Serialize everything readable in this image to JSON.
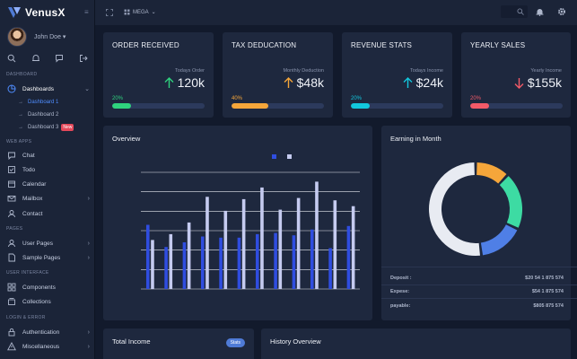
{
  "brand": {
    "name": "VenusX"
  },
  "user": {
    "name": "John Doe",
    "caret": "▾"
  },
  "sidebar": {
    "sections": {
      "dashboard": "DASHBOARD",
      "web_apps": "WEB APPS",
      "pages": "PAGES",
      "user_interface": "USER INTERFACE",
      "login_error": "LOGIN & ERROR"
    },
    "dashboards": {
      "label": "Dashboards",
      "chevron": "⌄"
    },
    "sub_items": [
      {
        "label": "Dashboard 1"
      },
      {
        "label": "Dashboard 2"
      },
      {
        "label": "Dashboard 3",
        "badge": "New"
      }
    ],
    "web_apps": [
      {
        "label": "Chat"
      },
      {
        "label": "Todo"
      },
      {
        "label": "Calendar"
      },
      {
        "label": "Mailbox",
        "chevron": "›"
      },
      {
        "label": "Contact"
      }
    ],
    "pages": [
      {
        "label": "User Pages",
        "chevron": "›"
      },
      {
        "label": "Sample Pages",
        "chevron": "›"
      }
    ],
    "ui": [
      {
        "label": "Components"
      },
      {
        "label": "Collections"
      }
    ],
    "login": [
      {
        "label": "Authentication",
        "chevron": "›"
      },
      {
        "label": "Miscellaneous",
        "chevron": "›"
      }
    ]
  },
  "topbar": {
    "mega_label": "MEGA",
    "mega_caret": "⌄"
  },
  "stats": [
    {
      "title": "ORDER RECEIVED",
      "sub": "Todays Order",
      "value": "120k",
      "percent": "20%",
      "progress": 0.2,
      "direction": "up",
      "color": "#2fd27e",
      "arrow_color": "#2fd27e"
    },
    {
      "title": "TAX DEDUCATION",
      "sub": "Monthly Deduction",
      "value": "$48k",
      "percent": "40%",
      "progress": 0.4,
      "direction": "up",
      "color": "#f5a63a",
      "arrow_color": "#f5a63a"
    },
    {
      "title": "REVENUE STATS",
      "sub": "Todays Income",
      "value": "$24k",
      "percent": "20%",
      "progress": 0.2,
      "direction": "up",
      "color": "#12c7dd",
      "arrow_color": "#12c7dd"
    },
    {
      "title": "YEARLY SALES",
      "sub": "Yearly Income",
      "value": "$155k",
      "percent": "20%",
      "progress": 0.2,
      "direction": "down",
      "color": "#f25a68",
      "arrow_color": "#f25a68"
    }
  ],
  "overview": {
    "title": "Overview"
  },
  "earning": {
    "title": "Earning in Month",
    "rows": [
      {
        "label": "Deposit :",
        "value": "$20 54 1 875 574"
      },
      {
        "label": "Expese:",
        "value": "$54 1 875 574"
      },
      {
        "label": "payable:",
        "value": "$805 875 574"
      }
    ]
  },
  "total_income": {
    "title": "Total Income",
    "button": "Stats"
  },
  "history": {
    "title": "History Overview"
  },
  "chart_data": [
    {
      "type": "bar",
      "title": "",
      "categories": [
        "",
        "",
        "",
        "",
        "",
        "",
        "",
        "",
        "",
        "",
        "",
        ""
      ],
      "ylim": [
        0,
        100
      ],
      "grid": true,
      "series": [
        {
          "name": "",
          "color": "#2f4de0",
          "values": [
            55,
            36,
            40,
            45,
            44,
            44,
            47,
            48,
            46,
            51,
            35,
            54
          ]
        },
        {
          "name": "",
          "color": "#c5cbf0",
          "values": [
            42,
            47,
            57,
            79,
            67,
            77,
            87,
            68,
            78,
            92,
            76,
            71
          ]
        }
      ]
    },
    {
      "type": "pie",
      "title": "",
      "donut": true,
      "series": [
        {
          "name": "",
          "color": "#f5a63a",
          "value": 12
        },
        {
          "name": "",
          "color": "#3ddba3",
          "value": 20
        },
        {
          "name": "",
          "color": "#4f7fe6",
          "value": 16
        },
        {
          "name": "",
          "color": "#e8ebf2",
          "value": 52
        }
      ]
    }
  ],
  "colors": {
    "background": "#121a2c",
    "panel": "#1e283e",
    "sidebar": "#1b2438",
    "accent": "#4f8dff"
  }
}
